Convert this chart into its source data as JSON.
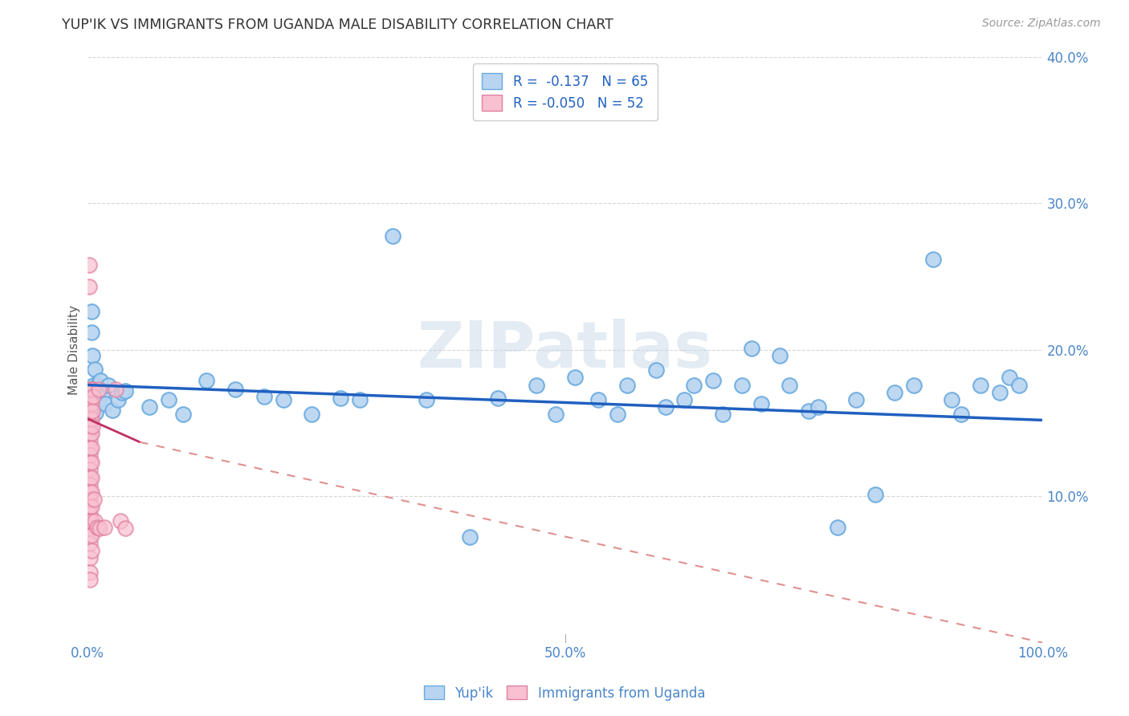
{
  "title": "YUP'IK VS IMMIGRANTS FROM UGANDA MALE DISABILITY CORRELATION CHART",
  "source": "Source: ZipAtlas.com",
  "ylabel": "Male Disability",
  "watermark": "ZIPatlas",
  "legend_entries": [
    {
      "label": "R =  -0.137   N = 65",
      "facecolor": "#b8d4ee",
      "edgecolor": "#7aaad0"
    },
    {
      "label": "R = -0.050   N = 52",
      "facecolor": "#f4b8c8",
      "edgecolor": "#e07090"
    }
  ],
  "legend_labels_bottom": [
    "Yup'ik",
    "Immigrants from Uganda"
  ],
  "xlim": [
    0,
    1.0
  ],
  "ylim": [
    0,
    0.4
  ],
  "grid_color": "#cccccc",
  "background_color": "#ffffff",
  "title_color": "#333333",
  "axis_color": "#4a86c8",
  "yupik_points": [
    [
      0.003,
      0.172
    ],
    [
      0.004,
      0.226
    ],
    [
      0.004,
      0.212
    ],
    [
      0.005,
      0.196
    ],
    [
      0.006,
      0.176
    ],
    [
      0.007,
      0.166
    ],
    [
      0.008,
      0.187
    ],
    [
      0.008,
      0.162
    ],
    [
      0.009,
      0.157
    ],
    [
      0.01,
      0.176
    ],
    [
      0.01,
      0.169
    ],
    [
      0.012,
      0.166
    ],
    [
      0.014,
      0.179
    ],
    [
      0.016,
      0.171
    ],
    [
      0.019,
      0.163
    ],
    [
      0.022,
      0.176
    ],
    [
      0.026,
      0.159
    ],
    [
      0.032,
      0.166
    ],
    [
      0.036,
      0.171
    ],
    [
      0.04,
      0.172
    ],
    [
      0.065,
      0.161
    ],
    [
      0.085,
      0.166
    ],
    [
      0.1,
      0.156
    ],
    [
      0.125,
      0.179
    ],
    [
      0.155,
      0.173
    ],
    [
      0.185,
      0.168
    ],
    [
      0.205,
      0.166
    ],
    [
      0.235,
      0.156
    ],
    [
      0.265,
      0.167
    ],
    [
      0.285,
      0.166
    ],
    [
      0.32,
      0.278
    ],
    [
      0.355,
      0.166
    ],
    [
      0.4,
      0.072
    ],
    [
      0.43,
      0.167
    ],
    [
      0.47,
      0.176
    ],
    [
      0.49,
      0.156
    ],
    [
      0.51,
      0.181
    ],
    [
      0.535,
      0.166
    ],
    [
      0.555,
      0.156
    ],
    [
      0.565,
      0.176
    ],
    [
      0.595,
      0.186
    ],
    [
      0.605,
      0.161
    ],
    [
      0.625,
      0.166
    ],
    [
      0.635,
      0.176
    ],
    [
      0.655,
      0.179
    ],
    [
      0.665,
      0.156
    ],
    [
      0.685,
      0.176
    ],
    [
      0.695,
      0.201
    ],
    [
      0.705,
      0.163
    ],
    [
      0.725,
      0.196
    ],
    [
      0.735,
      0.176
    ],
    [
      0.755,
      0.158
    ],
    [
      0.765,
      0.161
    ],
    [
      0.785,
      0.079
    ],
    [
      0.805,
      0.166
    ],
    [
      0.825,
      0.101
    ],
    [
      0.845,
      0.171
    ],
    [
      0.865,
      0.176
    ],
    [
      0.885,
      0.262
    ],
    [
      0.905,
      0.166
    ],
    [
      0.915,
      0.156
    ],
    [
      0.935,
      0.176
    ],
    [
      0.955,
      0.171
    ],
    [
      0.965,
      0.181
    ],
    [
      0.975,
      0.176
    ]
  ],
  "uganda_points": [
    [
      0.002,
      0.258
    ],
    [
      0.002,
      0.243
    ],
    [
      0.003,
      0.173
    ],
    [
      0.003,
      0.168
    ],
    [
      0.003,
      0.163
    ],
    [
      0.003,
      0.158
    ],
    [
      0.003,
      0.153
    ],
    [
      0.003,
      0.148
    ],
    [
      0.003,
      0.143
    ],
    [
      0.003,
      0.138
    ],
    [
      0.003,
      0.133
    ],
    [
      0.003,
      0.128
    ],
    [
      0.003,
      0.123
    ],
    [
      0.003,
      0.118
    ],
    [
      0.003,
      0.113
    ],
    [
      0.003,
      0.108
    ],
    [
      0.003,
      0.103
    ],
    [
      0.003,
      0.098
    ],
    [
      0.003,
      0.093
    ],
    [
      0.003,
      0.088
    ],
    [
      0.003,
      0.083
    ],
    [
      0.003,
      0.078
    ],
    [
      0.003,
      0.073
    ],
    [
      0.003,
      0.068
    ],
    [
      0.003,
      0.058
    ],
    [
      0.003,
      0.048
    ],
    [
      0.003,
      0.043
    ],
    [
      0.004,
      0.173
    ],
    [
      0.004,
      0.163
    ],
    [
      0.004,
      0.153
    ],
    [
      0.004,
      0.143
    ],
    [
      0.004,
      0.133
    ],
    [
      0.004,
      0.123
    ],
    [
      0.004,
      0.113
    ],
    [
      0.004,
      0.103
    ],
    [
      0.004,
      0.093
    ],
    [
      0.004,
      0.083
    ],
    [
      0.004,
      0.073
    ],
    [
      0.004,
      0.063
    ],
    [
      0.005,
      0.173
    ],
    [
      0.005,
      0.158
    ],
    [
      0.005,
      0.148
    ],
    [
      0.006,
      0.168
    ],
    [
      0.007,
      0.098
    ],
    [
      0.008,
      0.083
    ],
    [
      0.01,
      0.079
    ],
    [
      0.012,
      0.173
    ],
    [
      0.013,
      0.078
    ],
    [
      0.018,
      0.079
    ],
    [
      0.03,
      0.173
    ],
    [
      0.035,
      0.083
    ],
    [
      0.04,
      0.078
    ]
  ],
  "yupik_line": {
    "x0": 0.0,
    "y0": 0.176,
    "x1": 1.0,
    "y1": 0.152
  },
  "uganda_line_solid": {
    "x0": 0.0,
    "y0": 0.153,
    "x1": 0.055,
    "y1": 0.137
  },
  "uganda_line_dashed": {
    "x0": 0.055,
    "y0": 0.137,
    "x1": 1.0,
    "y1": 0.0
  }
}
